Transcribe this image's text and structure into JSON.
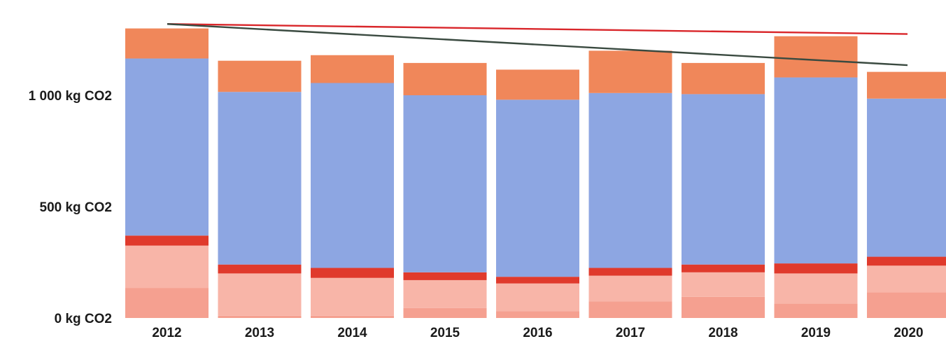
{
  "chart_data": {
    "type": "bar",
    "stacked": true,
    "title": "",
    "xlabel": "",
    "ylabel": "",
    "categories": [
      "2012",
      "2013",
      "2014",
      "2015",
      "2016",
      "2017",
      "2018",
      "2019",
      "2020"
    ],
    "y_tick_labels": [
      "0 kg CO2",
      "500 kg CO2",
      "1 000 kg CO2"
    ],
    "y_tick_values": [
      0,
      500,
      1000
    ],
    "ylim": [
      0,
      1330
    ],
    "grid": false,
    "legend": "none",
    "series": [
      {
        "color": "#f5a090",
        "values": [
          135,
          10,
          10,
          45,
          30,
          75,
          95,
          65,
          115
        ]
      },
      {
        "color": "#f8b5a8",
        "values": [
          190,
          190,
          170,
          125,
          125,
          115,
          110,
          135,
          120
        ]
      },
      {
        "color": "#e03a2c",
        "values": [
          45,
          40,
          45,
          35,
          30,
          35,
          35,
          45,
          40
        ]
      },
      {
        "color": "#8da6e2",
        "values": [
          795,
          775,
          830,
          795,
          795,
          785,
          765,
          835,
          710
        ]
      },
      {
        "color": "#f0875a",
        "values": [
          135,
          140,
          125,
          145,
          135,
          190,
          140,
          185,
          120
        ]
      }
    ],
    "lines": [
      {
        "color": "#d9262a",
        "from": [
          "2012",
          1320
        ],
        "to": [
          "2020",
          1275
        ]
      },
      {
        "color": "#3a4a40",
        "from": [
          "2012",
          1320
        ],
        "to": [
          "2020",
          1135
        ]
      }
    ]
  }
}
